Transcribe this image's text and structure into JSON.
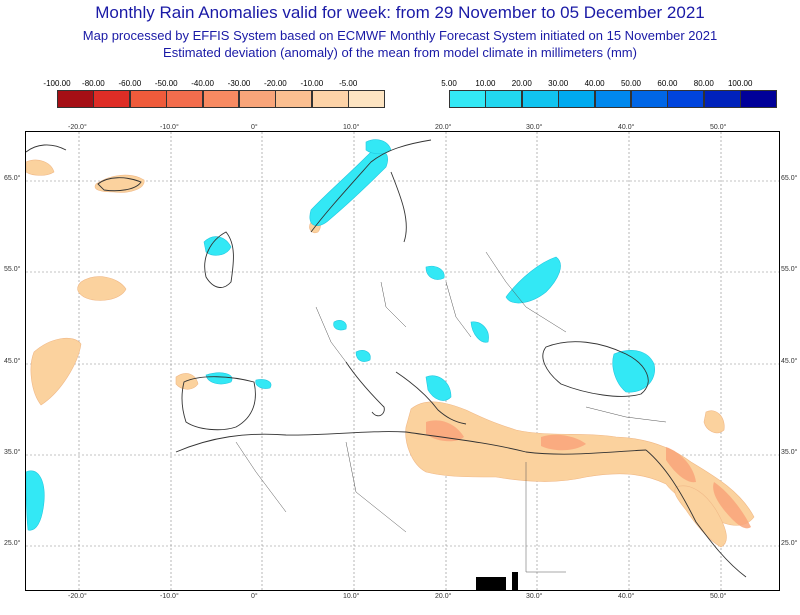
{
  "header": {
    "title": "Monthly Rain Anomalies valid for week: from 29 November to 05 December 2021",
    "subtitle": "Map processed by EFFIS System based on ECMWF Monthly Forecast System initiated on 15 November 2021",
    "description": "Estimated deviation (anomaly) of the mean from model climate in millimeters (mm)"
  },
  "colors": {
    "title": "#1a1aa6",
    "dry": [
      "#a50f15",
      "#de2d26",
      "#ef5b3b",
      "#f36d4d",
      "#f78a62",
      "#f9a57a",
      "#fbbf91",
      "#fdd3a8",
      "#fde4c2"
    ],
    "wet": [
      "#33e8f5",
      "#22d7f0",
      "#11c4f0",
      "#00aaf0",
      "#0088ee",
      "#0066e6",
      "#0044dd",
      "#0022bb",
      "#000099"
    ]
  },
  "legend": {
    "dry_labels": [
      "-100.00",
      "-80.00",
      "-60.00",
      "-50.00",
      "-40.00",
      "-30.00",
      "-20.00",
      "-10.00",
      "-5.00"
    ],
    "wet_labels": [
      "5.00",
      "10.00",
      "20.00",
      "30.00",
      "40.00",
      "50.00",
      "60.00",
      "80.00",
      "100.00"
    ]
  },
  "map": {
    "lon_labels": [
      "-20.0°",
      "-10.0°",
      "0°",
      "10.0°",
      "20.0°",
      "30.0°",
      "40.0°",
      "50.0°"
    ],
    "lat_labels": [
      "65.0°",
      "55.0°",
      "45.0°",
      "35.0°",
      "25.0°"
    ]
  }
}
